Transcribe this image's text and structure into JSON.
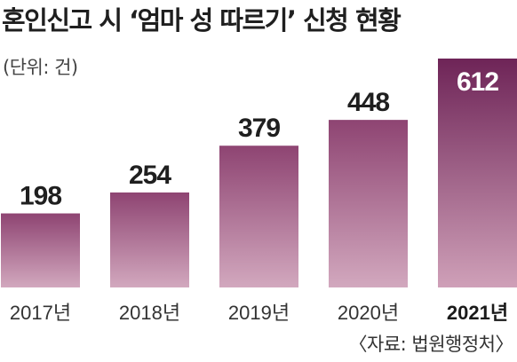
{
  "header": {
    "title": "혼인신고 시 ‘엄마 성 따르기’ 신청 현황",
    "unit": "(단위: 건)"
  },
  "footer": {
    "source": "〈자료: 법원행정처〉"
  },
  "colors": {
    "bar_top": "#8e4472",
    "bar_bottom": "#d2a8be",
    "last_bar_top": "#6e2457",
    "last_bar_bottom": "#cfa0b8",
    "label": "#1f1f1f",
    "last_label": "#ffffff"
  },
  "chart_data": {
    "type": "bar",
    "title": "혼인신고 시 ‘엄마 성 따르기’ 신청 현황",
    "unit": "(단위: 건)",
    "categories": [
      "2017년",
      "2018년",
      "2019년",
      "2020년",
      "2021년"
    ],
    "values": [
      198,
      254,
      379,
      448,
      612
    ],
    "value_labels": [
      "198",
      "254",
      "379",
      "448",
      "612"
    ],
    "highlight_index": 4,
    "ylim": [
      0,
      612
    ],
    "grid": false,
    "legend": "none"
  }
}
